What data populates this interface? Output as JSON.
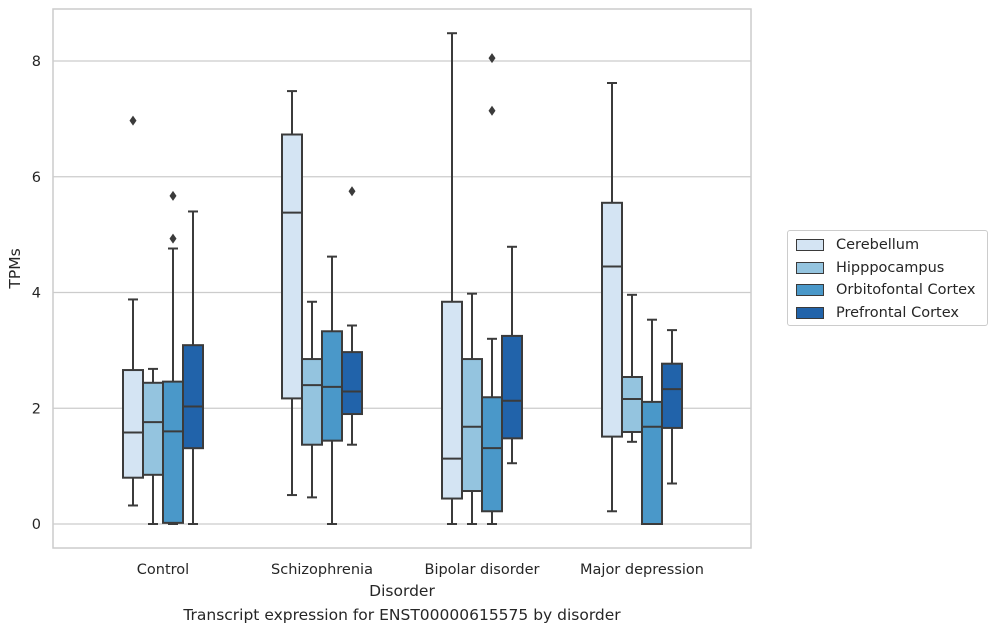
{
  "chart_data": {
    "type": "box",
    "xlabel": "Disorder",
    "ylabel": "TPMs",
    "caption": "Transcript expression for ENST00000615575 by disorder",
    "ylim": [
      -0.4,
      8.9
    ],
    "yticks": [
      0,
      2,
      4,
      6,
      8
    ],
    "grid": true,
    "legend_position": "right",
    "categories": [
      "Control",
      "Schizophrenia",
      "Bipolar disorder",
      "Major depression"
    ],
    "series": [
      {
        "name": "Cerebellum",
        "color": "#d4e4f3",
        "boxes": [
          {
            "whisker_low": 0.32,
            "q1": 0.8,
            "median": 1.58,
            "q3": 2.66,
            "whisker_high": 3.88,
            "outliers": [
              6.97
            ]
          },
          {
            "whisker_low": 0.5,
            "q1": 2.17,
            "median": 5.38,
            "q3": 6.73,
            "whisker_high": 7.48,
            "outliers": []
          },
          {
            "whisker_low": 0.0,
            "q1": 0.44,
            "median": 1.13,
            "q3": 3.84,
            "whisker_high": 8.48,
            "outliers": []
          },
          {
            "whisker_low": 0.22,
            "q1": 1.51,
            "median": 4.45,
            "q3": 5.55,
            "whisker_high": 7.62,
            "outliers": []
          }
        ]
      },
      {
        "name": "Hipppocampus",
        "color": "#94c4df",
        "boxes": [
          {
            "whisker_low": 0.0,
            "q1": 0.85,
            "median": 1.76,
            "q3": 2.44,
            "whisker_high": 2.68,
            "outliers": []
          },
          {
            "whisker_low": 0.46,
            "q1": 1.37,
            "median": 2.4,
            "q3": 2.85,
            "whisker_high": 3.84,
            "outliers": []
          },
          {
            "whisker_low": 0.0,
            "q1": 0.57,
            "median": 1.68,
            "q3": 2.85,
            "whisker_high": 3.98,
            "outliers": []
          },
          {
            "whisker_low": 1.42,
            "q1": 1.59,
            "median": 2.16,
            "q3": 2.54,
            "whisker_high": 3.96,
            "outliers": []
          }
        ]
      },
      {
        "name": "Orbitofontal Cortex",
        "color": "#4a98c9",
        "boxes": [
          {
            "whisker_low": 0.0,
            "q1": 0.02,
            "median": 1.6,
            "q3": 2.46,
            "whisker_high": 4.76,
            "outliers": [
              4.93,
              5.67
            ]
          },
          {
            "whisker_low": 0.0,
            "q1": 1.44,
            "median": 2.37,
            "q3": 3.33,
            "whisker_high": 4.62,
            "outliers": []
          },
          {
            "whisker_low": 0.0,
            "q1": 0.22,
            "median": 1.31,
            "q3": 2.19,
            "whisker_high": 3.2,
            "outliers": [
              7.14,
              8.05
            ]
          },
          {
            "whisker_low": 0.0,
            "q1": 0.0,
            "median": 1.68,
            "q3": 2.11,
            "whisker_high": 3.53,
            "outliers": []
          }
        ]
      },
      {
        "name": "Prefrontal Cortex",
        "color": "#2163aa",
        "boxes": [
          {
            "whisker_low": 0.0,
            "q1": 1.31,
            "median": 2.03,
            "q3": 3.09,
            "whisker_high": 5.4,
            "outliers": []
          },
          {
            "whisker_low": 1.37,
            "q1": 1.9,
            "median": 2.29,
            "q3": 2.97,
            "whisker_high": 3.43,
            "outliers": [
              5.75
            ]
          },
          {
            "whisker_low": 1.05,
            "q1": 1.48,
            "median": 2.13,
            "q3": 3.25,
            "whisker_high": 4.79,
            "outliers": []
          },
          {
            "whisker_low": 0.7,
            "q1": 1.66,
            "median": 2.33,
            "q3": 2.77,
            "whisker_high": 3.35,
            "outliers": []
          }
        ]
      }
    ]
  }
}
